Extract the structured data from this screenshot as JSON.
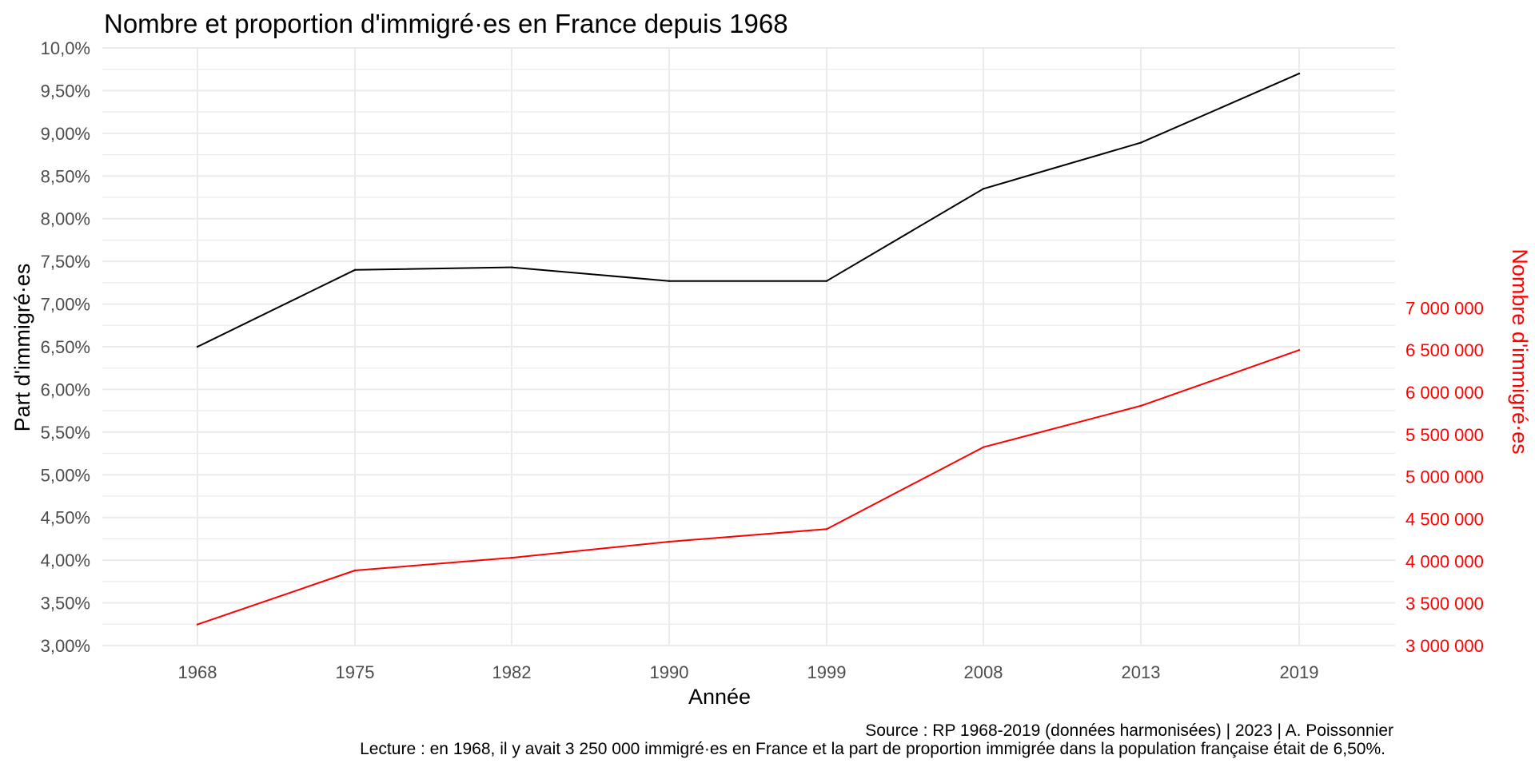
{
  "colors": {
    "primary_line": "#000000",
    "secondary_line": "#ff0000",
    "secondary_axis": "#ff0000",
    "grid": "#ebebeb",
    "tick_text": "#4d4d4d",
    "text": "#000000"
  },
  "chart_data": {
    "type": "line",
    "title": "Nombre et proportion d'immigré·es en France depuis 1968",
    "xlabel": "Année",
    "ylabel": "Part d'immigré·es",
    "y2label": "Nombre d'immigré·es",
    "caption_source": "Source : RP 1968-2019 (données harmonisées) | 2023 | A. Poissonnier",
    "caption_reading": "Lecture : en 1968, il y avait 3 250 000 immigré·es en France et la part de proportion immigrée dans la population française était de 6,50%.",
    "x": [
      1968,
      1975,
      1982,
      1990,
      1999,
      2008,
      2013,
      2019
    ],
    "x_tick_labels": [
      "1968",
      "1975",
      "1982",
      "1990",
      "1999",
      "2008",
      "2013",
      "2019"
    ],
    "ylim": [
      3.0,
      10.0
    ],
    "y_ticks": [
      3.0,
      3.5,
      4.0,
      4.5,
      5.0,
      5.5,
      6.0,
      6.5,
      7.0,
      7.5,
      8.0,
      8.5,
      9.0,
      9.5,
      10.0
    ],
    "y_tick_labels": [
      "3,00%",
      "3,50%",
      "4,00%",
      "4,50%",
      "5,00%",
      "5,50%",
      "6,00%",
      "6,50%",
      "7,00%",
      "7,50%",
      "8,00%",
      "8,50%",
      "9,00%",
      "9,50%",
      "10,0%"
    ],
    "y2_ticks": [
      3000000,
      3500000,
      4000000,
      4500000,
      5000000,
      5500000,
      6000000,
      6500000,
      7000000
    ],
    "y2_tick_labels": [
      "3 000 000",
      "3 500 000",
      "4 000 000",
      "4 500 000",
      "5 000 000",
      "5 500 000",
      "6 000 000",
      "6 500 000",
      "7 000 000"
    ],
    "series": [
      {
        "name": "Part d'immigré·es",
        "axis": "left",
        "values": [
          6.5,
          7.4,
          7.43,
          7.27,
          7.27,
          8.35,
          8.89,
          9.7
        ]
      },
      {
        "name": "Nombre d'immigré·es",
        "axis": "right",
        "values": [
          3250000,
          3890000,
          4040000,
          4230000,
          4380000,
          5350000,
          5840000,
          6500000
        ]
      }
    ],
    "grid": true
  }
}
